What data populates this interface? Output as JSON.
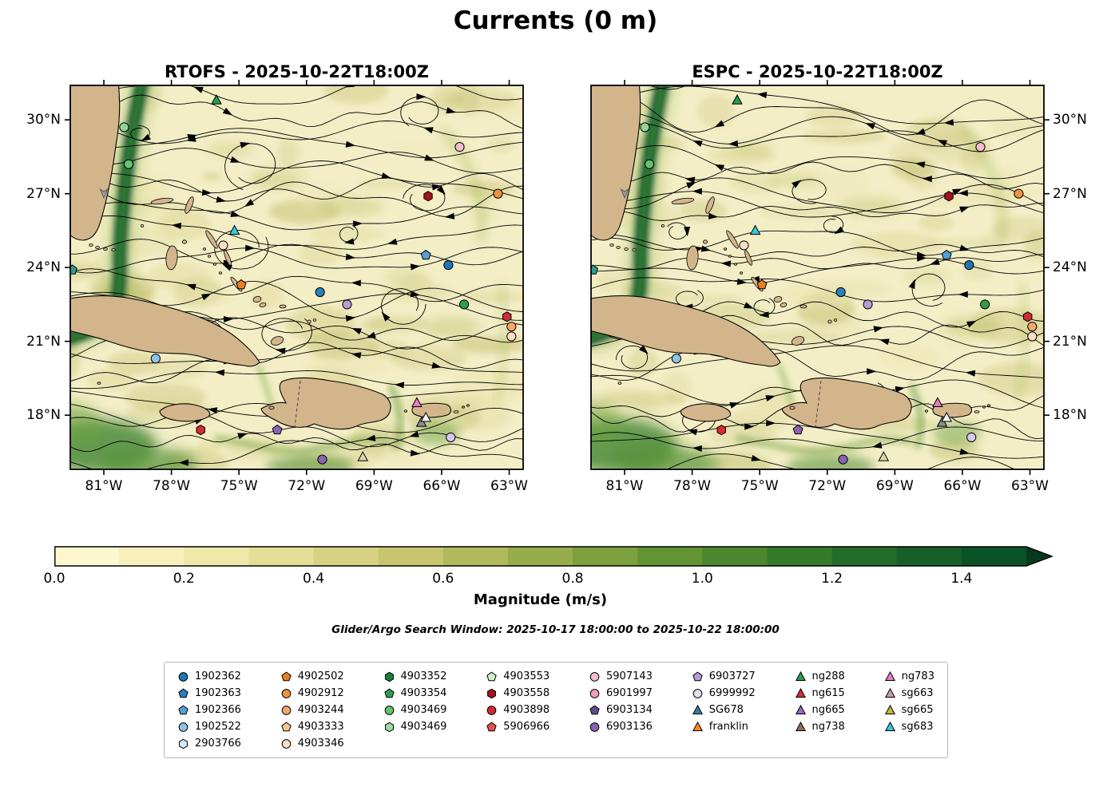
{
  "title": "Currents (0 m)",
  "chart_data": {
    "type": "heatmap",
    "subtype": "ocean_current_streamplot_map",
    "title": "Currents (0 m)",
    "panels": [
      {
        "title": "RTOFS - 2025-10-22T18:00Z"
      },
      {
        "title": "ESPC - 2025-10-22T18:00Z"
      }
    ],
    "lon_tick_values": [
      -81,
      -78,
      -75,
      -72,
      -69,
      -66,
      -63
    ],
    "lon_tick_labels": [
      "81°W",
      "78°W",
      "75°W",
      "72°W",
      "69°W",
      "66°W",
      "63°W"
    ],
    "lat_tick_values": [
      30,
      27,
      24,
      21,
      18
    ],
    "lat_tick_labels": [
      "30°N",
      "27°N",
      "24°N",
      "21°N",
      "18°N"
    ],
    "lon_range": [
      -82.49,
      -62.38
    ],
    "lat_range": [
      15.8,
      31.4
    ],
    "subtitle": "Glider/Argo Search Window: 2025-10-17 18:00:00 to 2025-10-22 18:00:00",
    "colorbar": {
      "label": "Magnitude (m/s)",
      "tick_labels": [
        "0.0",
        "0.2",
        "0.4",
        "0.6",
        "0.8",
        "1.0",
        "1.2",
        "1.4"
      ],
      "tick_values": [
        0,
        0.2,
        0.4,
        0.6,
        0.8,
        1.0,
        1.2,
        1.4
      ],
      "vmin": 0.0,
      "vmax": 1.5,
      "extend": "max",
      "colors": [
        "#fdf7cf",
        "#f7f0bd",
        "#f0e8aa",
        "#e6dd96",
        "#d8d184",
        "#c7c56e",
        "#b0ba5c",
        "#97ad4c",
        "#7da03f",
        "#639434",
        "#4a872e",
        "#35792b",
        "#246c2a",
        "#165f29",
        "#0b5226"
      ],
      "extend_color": "#073a1c"
    },
    "observation_markers": [
      {
        "lon": -76.0,
        "lat": 30.8,
        "marker": "triangle",
        "color": "#2a9d4e"
      },
      {
        "lon": -80.1,
        "lat": 29.7,
        "marker": "circle",
        "color": "#8fd694"
      },
      {
        "lon": -79.9,
        "lat": 28.2,
        "marker": "circle",
        "color": "#63c36e"
      },
      {
        "lon": -65.2,
        "lat": 28.9,
        "marker": "circle",
        "color": "#f6bccb"
      },
      {
        "lon": -63.5,
        "lat": 27.0,
        "marker": "circle",
        "color": "#ef9240"
      },
      {
        "lon": -66.6,
        "lat": 26.9,
        "marker": "hexagon",
        "color": "#a41320"
      },
      {
        "lon": -75.2,
        "lat": 25.5,
        "marker": "triangle",
        "color": "#35c8d8"
      },
      {
        "lon": -75.7,
        "lat": 24.9,
        "marker": "circle",
        "color": "#fadfc5"
      },
      {
        "lon": -66.7,
        "lat": 24.5,
        "marker": "pentagon",
        "color": "#559fd3"
      },
      {
        "lon": -65.7,
        "lat": 24.1,
        "marker": "circle",
        "color": "#1f77b4"
      },
      {
        "lon": -82.4,
        "lat": 23.9,
        "marker": "pentagon",
        "color": "#2a9d8f"
      },
      {
        "lon": -74.9,
        "lat": 23.3,
        "marker": "pentagon",
        "color": "#e87f21"
      },
      {
        "lon": -71.4,
        "lat": 23.0,
        "marker": "circle",
        "color": "#2c7fb8"
      },
      {
        "lon": -70.2,
        "lat": 22.5,
        "marker": "circle",
        "color": "#b79bd6"
      },
      {
        "lon": -65.0,
        "lat": 22.5,
        "marker": "circle",
        "color": "#2f9e4d"
      },
      {
        "lon": -63.1,
        "lat": 22.0,
        "marker": "hexagon",
        "color": "#cf2b31"
      },
      {
        "lon": -62.9,
        "lat": 21.6,
        "marker": "circle",
        "color": "#f4a869"
      },
      {
        "lon": -62.9,
        "lat": 21.2,
        "marker": "circle",
        "color": "#fadfc5"
      },
      {
        "lon": -78.7,
        "lat": 20.3,
        "marker": "circle",
        "color": "#8fc3e8"
      },
      {
        "lon": -76.7,
        "lat": 17.4,
        "marker": "hexagon",
        "color": "#d62b30"
      },
      {
        "lon": -73.3,
        "lat": 17.4,
        "marker": "pentagon",
        "color": "#8a63b3"
      },
      {
        "lon": -67.1,
        "lat": 18.5,
        "marker": "triangle",
        "color": "#e87bc8"
      },
      {
        "lon": -66.9,
        "lat": 17.7,
        "marker": "triangle",
        "color": "#8d8d8d"
      },
      {
        "lon": -66.7,
        "lat": 17.9,
        "marker": "triangle",
        "color": "#f2f2f2"
      },
      {
        "lon": -65.6,
        "lat": 17.1,
        "marker": "circle",
        "color": "#d9c6ec"
      },
      {
        "lon": -69.5,
        "lat": 16.3,
        "marker": "triangle",
        "color": "#d8d8ae"
      },
      {
        "lon": -71.3,
        "lat": 16.2,
        "marker": "circle",
        "color": "#8a63b3"
      }
    ]
  },
  "legend": {
    "columns": [
      [
        {
          "label": "1902362",
          "marker": "circle",
          "color": "#1f77b4"
        },
        {
          "label": "1902363",
          "marker": "pentagon",
          "color": "#2c7fb8"
        },
        {
          "label": "1902366",
          "marker": "pentagon",
          "color": "#559fd3"
        },
        {
          "label": "1902522",
          "marker": "circle",
          "color": "#8fc3e8"
        },
        {
          "label": "2903766",
          "marker": "hexagon",
          "color": "#d4e9f7"
        }
      ],
      [
        {
          "label": "4902502",
          "marker": "pentagon",
          "color": "#e87f21"
        },
        {
          "label": "4902912",
          "marker": "circle",
          "color": "#ef9240"
        },
        {
          "label": "4903244",
          "marker": "circle",
          "color": "#f4a869"
        },
        {
          "label": "4903333",
          "marker": "pentagon",
          "color": "#f7c596"
        },
        {
          "label": "4903346",
          "marker": "circle",
          "color": "#fadfc5"
        }
      ],
      [
        {
          "label": "4903352",
          "marker": "hexagon",
          "color": "#17813a"
        },
        {
          "label": "4903354",
          "marker": "pentagon",
          "color": "#2f9e4d"
        },
        {
          "label": "4903469",
          "marker": "circle",
          "color": "#63c36e"
        },
        {
          "label": "4903469",
          "marker": "hexagon",
          "color": "#9ade9d"
        }
      ],
      [
        {
          "label": "4903553",
          "marker": "pentagon",
          "color": "#cdf2c3"
        },
        {
          "label": "4903558",
          "marker": "hexagon",
          "color": "#a41320"
        },
        {
          "label": "4903898",
          "marker": "circle",
          "color": "#cf2b31"
        },
        {
          "label": "5906966",
          "marker": "pentagon",
          "color": "#e0514a"
        }
      ],
      [
        {
          "label": "5907143",
          "marker": "circle",
          "color": "#f6bccb"
        },
        {
          "label": "6901997",
          "marker": "circle",
          "color": "#f29dba"
        },
        {
          "label": "6903134",
          "marker": "pentagon",
          "color": "#5f4a8b"
        },
        {
          "label": "6903136",
          "marker": "circle",
          "color": "#8a63b3"
        }
      ],
      [
        {
          "label": "6903727",
          "marker": "pentagon",
          "color": "#b79bd6"
        },
        {
          "label": "6999992",
          "marker": "circle",
          "color": "#e8def4"
        },
        {
          "label": "SG678",
          "marker": "triangle",
          "color": "#3a7ca5"
        },
        {
          "label": "franklin",
          "marker": "triangle",
          "color": "#f68b1f"
        }
      ],
      [
        {
          "label": "ng288",
          "marker": "triangle",
          "color": "#2a9d4e"
        },
        {
          "label": "ng615",
          "marker": "triangle",
          "color": "#d62b30"
        },
        {
          "label": "ng665",
          "marker": "triangle",
          "color": "#8f6bbf"
        },
        {
          "label": "ng738",
          "marker": "triangle",
          "color": "#8a6f60"
        }
      ],
      [
        {
          "label": "ng783",
          "marker": "triangle",
          "color": "#e87bc8"
        },
        {
          "label": "sg663",
          "marker": "triangle",
          "color": "#c79fb2"
        },
        {
          "label": "sg665",
          "marker": "triangle",
          "color": "#c3b83d"
        },
        {
          "label": "sg683",
          "marker": "triangle",
          "color": "#35c8d8"
        }
      ]
    ]
  }
}
